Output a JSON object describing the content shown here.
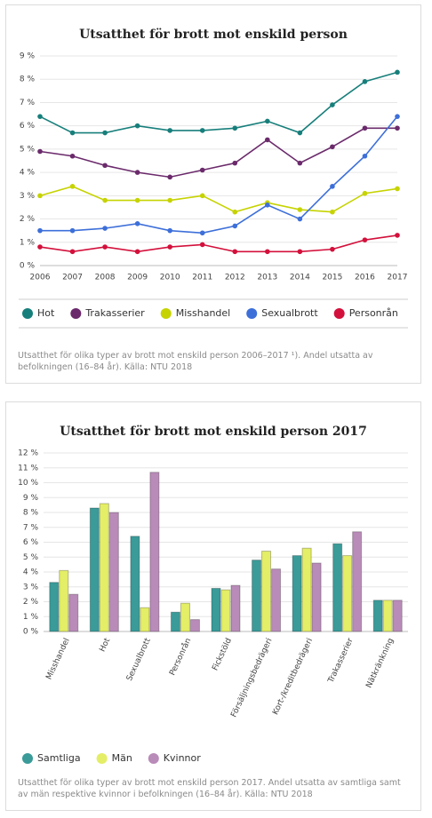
{
  "chart_data": [
    {
      "type": "line",
      "title": "Utsatthet för brott mot enskild person",
      "categories": [
        "2006",
        "2007",
        "2008",
        "2009",
        "2010",
        "2011",
        "2012",
        "2013",
        "2014",
        "2015",
        "2016",
        "2017"
      ],
      "ylim": [
        0,
        9
      ],
      "yticks": [
        {
          "value": 0,
          "label": "0 %"
        },
        {
          "value": 1,
          "label": "1 %"
        },
        {
          "value": 2,
          "label": "2 %"
        },
        {
          "value": 3,
          "label": "3 %"
        },
        {
          "value": 4,
          "label": "4 %"
        },
        {
          "value": 5,
          "label": "5 %"
        },
        {
          "value": 6,
          "label": "6 %"
        },
        {
          "value": 7,
          "label": "7 %"
        },
        {
          "value": 8,
          "label": "8 %"
        },
        {
          "value": 9,
          "label": "9 %"
        }
      ],
      "grid": true,
      "series": [
        {
          "name": "Hot",
          "color": "#177f7b",
          "values": [
            6.4,
            5.7,
            5.7,
            6.0,
            5.8,
            5.8,
            5.9,
            6.2,
            5.7,
            6.9,
            7.9,
            8.3
          ]
        },
        {
          "name": "Trakasserier",
          "color": "#6b2a6b",
          "values": [
            4.9,
            4.7,
            4.3,
            4.0,
            3.8,
            4.1,
            4.4,
            5.4,
            4.4,
            5.1,
            5.9,
            5.9
          ]
        },
        {
          "name": "Misshandel",
          "color": "#c6d300",
          "values": [
            3.0,
            3.4,
            2.8,
            2.8,
            2.8,
            3.0,
            2.3,
            2.7,
            2.4,
            2.3,
            3.1,
            3.3
          ]
        },
        {
          "name": "Sexualbrott",
          "color": "#3d6fd9",
          "values": [
            1.5,
            1.5,
            1.6,
            1.8,
            1.5,
            1.4,
            1.7,
            2.6,
            2.0,
            3.4,
            4.7,
            6.4
          ]
        },
        {
          "name": "Personrån",
          "color": "#d3103b",
          "values": [
            0.8,
            0.6,
            0.8,
            0.6,
            0.8,
            0.9,
            0.6,
            0.6,
            0.6,
            0.7,
            1.1,
            1.3
          ]
        }
      ],
      "caption": "Utsatthet för olika typer av brott mot enskild person 2006–2017 ¹). Andel utsatta av befolkningen (16–84 år). Källa: NTU 2018"
    },
    {
      "type": "bar",
      "title": "Utsatthet för brott mot enskild person 2017",
      "categories": [
        "Misshandel",
        "Hot",
        "Sexualbrott",
        "Personrån",
        "Fickstöld",
        "Försäljningsbedrägeri",
        "Kort-/kreditbedrägeri",
        "Trakasserier",
        "Nätkränkning"
      ],
      "ylim": [
        0,
        12
      ],
      "yticks": [
        {
          "value": 0,
          "label": "0 %"
        },
        {
          "value": 1,
          "label": "1 %"
        },
        {
          "value": 2,
          "label": "2 %"
        },
        {
          "value": 3,
          "label": "3 %"
        },
        {
          "value": 4,
          "label": "4 %"
        },
        {
          "value": 5,
          "label": "5 %"
        },
        {
          "value": 6,
          "label": "6 %"
        },
        {
          "value": 7,
          "label": "7 %"
        },
        {
          "value": 8,
          "label": "8 %"
        },
        {
          "value": 9,
          "label": "9 %"
        },
        {
          "value": 10,
          "label": "10 %"
        },
        {
          "value": 11,
          "label": "11 %"
        },
        {
          "value": 12,
          "label": "12 %"
        }
      ],
      "grid": true,
      "series": [
        {
          "name": "Samtliga",
          "color": "#3a9b99",
          "values": [
            3.3,
            8.3,
            6.4,
            1.3,
            2.9,
            4.8,
            5.1,
            5.9,
            2.1
          ]
        },
        {
          "name": "Män",
          "color": "#e4ee66",
          "values": [
            4.1,
            8.6,
            1.6,
            1.9,
            2.8,
            5.4,
            5.6,
            5.1,
            2.1
          ]
        },
        {
          "name": "Kvinnor",
          "color": "#b98bb8",
          "values": [
            2.5,
            8.0,
            10.7,
            0.8,
            3.1,
            4.2,
            4.6,
            6.7,
            2.1
          ]
        }
      ],
      "caption": "Utsatthet för olika typer av brott mot enskild person 2017. Andel utsatta av samtliga samt av män respektive kvinnor i befolkningen (16–84 år). Källa: NTU 2018"
    }
  ]
}
